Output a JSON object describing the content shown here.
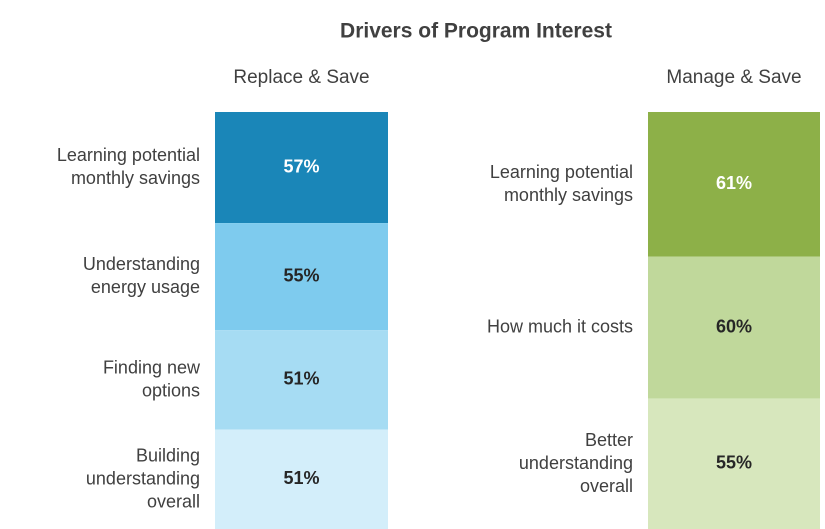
{
  "title": "Drivers of Program Interest",
  "chart_data": [
    {
      "type": "stacked-column",
      "title": "Replace & Save",
      "categories": [
        "Learning potential\nmonthly savings",
        "Understanding\nenergy usage",
        "Finding new\noptions",
        "Building\nunderstanding\noverall"
      ],
      "values": [
        57,
        55,
        51,
        51
      ],
      "value_labels": [
        "57%",
        "55%",
        "51%",
        "51%"
      ],
      "colors": [
        "#1a86b8",
        "#7ecbee",
        "#a6dcf3",
        "#d3eefa"
      ],
      "value_label_colors": [
        "#ffffff",
        "#262626",
        "#262626",
        "#262626"
      ]
    },
    {
      "type": "stacked-column",
      "title": "Manage & Save",
      "categories": [
        "Learning potential\nmonthly savings",
        "How much it costs",
        "Better\nunderstanding\noverall"
      ],
      "values": [
        61,
        60,
        55
      ],
      "value_labels": [
        "61%",
        "60%",
        "55%"
      ],
      "colors": [
        "#8db048",
        "#c0d89b",
        "#d7e7bd"
      ],
      "value_label_colors": [
        "#ffffff",
        "#262626",
        "#262626"
      ]
    }
  ]
}
